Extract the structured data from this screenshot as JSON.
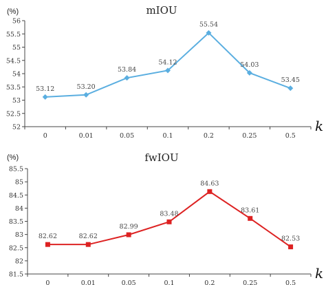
{
  "chart_data": [
    {
      "type": "line",
      "title": "mIOU",
      "ylabel": "(%)",
      "xlabel": "k",
      "categories": [
        "0",
        "0.01",
        "0.05",
        "0.1",
        "0.2",
        "0.25",
        "0.5"
      ],
      "values": [
        53.12,
        53.2,
        53.84,
        54.12,
        55.54,
        54.03,
        53.45
      ],
      "data_labels": [
        "53.12",
        "53.20",
        "53.84",
        "54.12",
        "55.54",
        "54.03",
        "53.45"
      ],
      "ylim": [
        52,
        56
      ],
      "yticks": [
        "52",
        "52.5",
        "53",
        "53.5",
        "54",
        "54.5",
        "55",
        "55.5",
        "56"
      ],
      "grid": false,
      "legend": "none",
      "color": "#5aaee0",
      "marker": "diamond"
    },
    {
      "type": "line",
      "title": "fwIOU",
      "ylabel": "(%)",
      "xlabel": "k",
      "categories": [
        "0",
        "0.01",
        "0.05",
        "0.1",
        "0.2",
        "0.25",
        "0.5"
      ],
      "values": [
        82.62,
        82.62,
        82.99,
        83.48,
        84.63,
        83.61,
        82.53
      ],
      "data_labels": [
        "82.62",
        "82.62",
        "82.99",
        "83.48",
        "84.63",
        "83.61",
        "82.53"
      ],
      "ylim": [
        81.5,
        85.5
      ],
      "yticks": [
        "81.5",
        "82",
        "82.5",
        "83",
        "83.5",
        "84",
        "84.5",
        "85",
        "85.5"
      ],
      "grid": false,
      "legend": "none",
      "color": "#dd2222",
      "marker": "square"
    }
  ]
}
